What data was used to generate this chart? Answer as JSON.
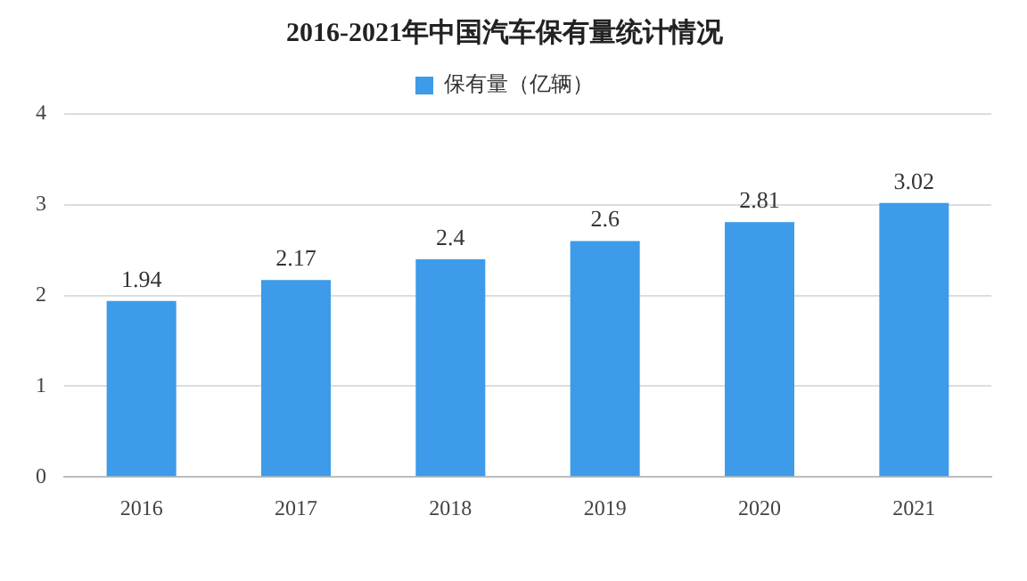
{
  "chart_data": {
    "type": "bar",
    "title": "2016-2021年中国汽车保有量统计情况",
    "categories": [
      "2016",
      "2017",
      "2018",
      "2019",
      "2020",
      "2021"
    ],
    "series": [
      {
        "name": "保有量（亿辆）",
        "color": "#3d9be9",
        "values": [
          1.94,
          2.17,
          2.4,
          2.6,
          2.81,
          3.02
        ]
      }
    ],
    "ylim": [
      0,
      4
    ],
    "yticks": [
      0,
      1,
      2,
      3,
      4
    ],
    "grid": "y",
    "legend": "top",
    "data_labels": true
  }
}
